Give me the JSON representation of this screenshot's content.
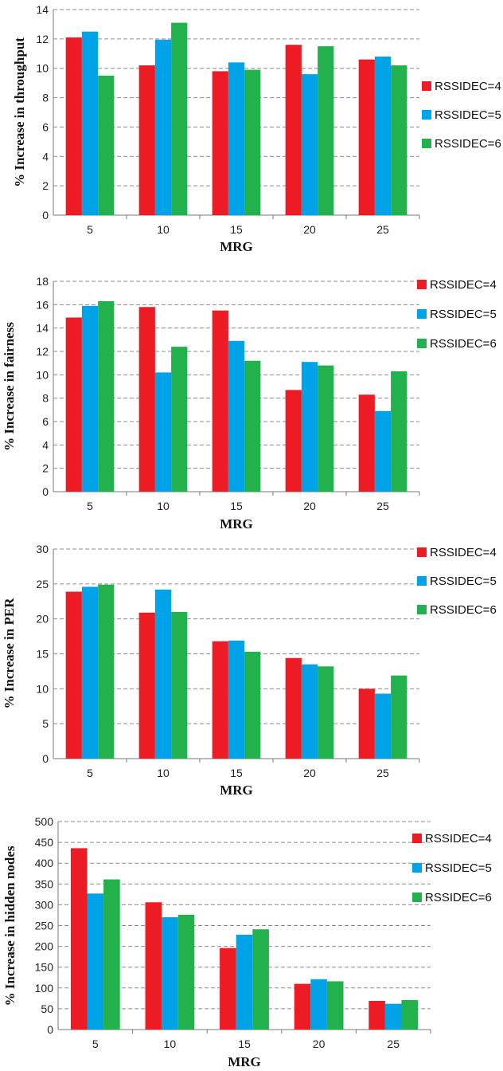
{
  "colors": {
    "series": [
      "#ed1c24",
      "#00a2e8",
      "#22b14c"
    ],
    "grid": "#8c8c8c"
  },
  "chart_data": [
    {
      "type": "bar",
      "categories": [
        "5",
        "10",
        "15",
        "20",
        "25"
      ],
      "series": [
        {
          "name": "RSSIDEC=4",
          "values": [
            12.1,
            10.2,
            9.8,
            11.6,
            10.6
          ]
        },
        {
          "name": "RSSIDEC=5",
          "values": [
            12.5,
            11.95,
            10.4,
            9.6,
            10.8
          ]
        },
        {
          "name": "RSSIDEC=6",
          "values": [
            9.5,
            13.1,
            9.9,
            11.5,
            10.2
          ]
        }
      ],
      "xlabel": "MRG",
      "ylabel": "% Increase in throughput",
      "ylim": [
        0,
        14
      ],
      "yticks": [
        0,
        2,
        4,
        6,
        8,
        10,
        12,
        14
      ],
      "grid": true,
      "legend": "right"
    },
    {
      "type": "bar",
      "categories": [
        "5",
        "10",
        "15",
        "20",
        "25"
      ],
      "series": [
        {
          "name": "RSSIDEC=4",
          "values": [
            14.9,
            15.8,
            15.5,
            8.7,
            8.3
          ]
        },
        {
          "name": "RSSIDEC=5",
          "values": [
            15.9,
            10.2,
            12.9,
            11.1,
            6.9
          ]
        },
        {
          "name": "RSSIDEC=6",
          "values": [
            16.3,
            12.4,
            11.2,
            10.8,
            10.3
          ]
        }
      ],
      "xlabel": "MRG",
      "ylabel": "% Increase in fairness",
      "ylim": [
        0,
        18
      ],
      "yticks": [
        0,
        2,
        4,
        6,
        8,
        10,
        12,
        14,
        16,
        18
      ],
      "grid": true,
      "legend": "top-right"
    },
    {
      "type": "bar",
      "categories": [
        "5",
        "10",
        "15",
        "20",
        "25"
      ],
      "series": [
        {
          "name": "RSSIDEC=4",
          "values": [
            23.9,
            20.9,
            16.8,
            14.4,
            10.0
          ]
        },
        {
          "name": "RSSIDEC=5",
          "values": [
            24.6,
            24.2,
            16.9,
            13.5,
            9.3
          ]
        },
        {
          "name": "RSSIDEC=6",
          "values": [
            24.9,
            21.0,
            15.3,
            13.2,
            11.9
          ]
        }
      ],
      "xlabel": "MRG",
      "ylabel": "% Increase in PER",
      "ylim": [
        0,
        30
      ],
      "yticks": [
        0,
        5,
        10,
        15,
        20,
        25,
        30
      ],
      "grid": true,
      "legend": "top-right"
    },
    {
      "type": "bar",
      "categories": [
        "5",
        "10",
        "15",
        "20",
        "25"
      ],
      "series": [
        {
          "name": "RSSIDEC=4",
          "values": [
            436,
            306,
            196,
            110,
            69
          ]
        },
        {
          "name": "RSSIDEC=5",
          "values": [
            327,
            270,
            228,
            121,
            62
          ]
        },
        {
          "name": "RSSIDEC=6",
          "values": [
            361,
            276,
            241,
            116,
            71
          ]
        }
      ],
      "xlabel": "MRG",
      "ylabel": "% Increase in hidden nodes",
      "ylim": [
        0,
        500
      ],
      "yticks": [
        0,
        50,
        100,
        150,
        200,
        250,
        300,
        350,
        400,
        450,
        500
      ],
      "grid": true,
      "legend": "top-right"
    }
  ]
}
